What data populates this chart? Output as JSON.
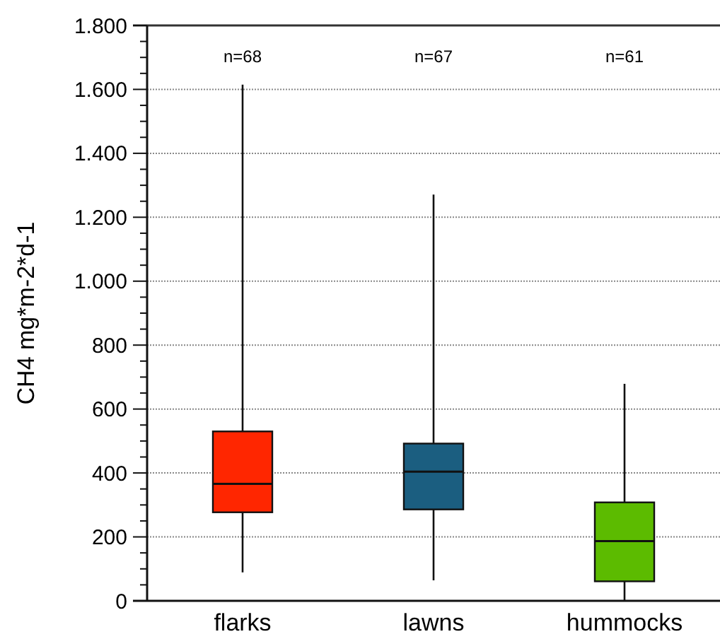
{
  "chart_data": {
    "type": "box",
    "ylabel": "CH4 mg*m-2*d-1",
    "categories": [
      "flarks",
      "lawns",
      "hummocks"
    ],
    "colors": [
      "#ff2600",
      "#1b5e80",
      "#5cbb00"
    ],
    "boxes": [
      {
        "low": 89,
        "q1": 277,
        "median": 366,
        "q3": 530,
        "high": 1615
      },
      {
        "low": 64,
        "q1": 286,
        "median": 404,
        "q3": 492,
        "high": 1271
      },
      {
        "low": 0,
        "q1": 61,
        "median": 187,
        "q3": 308,
        "high": 679
      }
    ],
    "ylim": [
      0,
      1800
    ],
    "yticks": [
      0,
      {
        "value": 50,
        "label": null
      },
      200,
      {
        "value": 100,
        "label": null
      },
      {
        "value": 150,
        "label": null
      },
      {
        "value": 250,
        "label": null
      },
      {
        "value": 300,
        "label": null
      },
      {
        "value": 350,
        "label": null
      },
      400,
      {
        "value": 450,
        "label": null
      },
      {
        "value": 500,
        "label": null
      },
      {
        "value": 550,
        "label": null
      },
      600,
      {
        "value": 650,
        "label": null
      },
      {
        "value": 700,
        "label": null
      },
      {
        "value": 750,
        "label": null
      },
      800,
      {
        "value": 850,
        "label": null
      },
      {
        "value": 900,
        "label": null
      },
      {
        "value": 950,
        "label": null
      },
      {
        "value": 1000,
        "label": "1.000"
      },
      {
        "value": 1050,
        "label": null
      },
      {
        "value": 1100,
        "label": null
      },
      {
        "value": 1150,
        "label": null
      },
      {
        "value": 1200,
        "label": "1.200"
      },
      {
        "value": 1250,
        "label": null
      },
      {
        "value": 1300,
        "label": null
      },
      {
        "value": 1350,
        "label": null
      },
      {
        "value": 1400,
        "label": "1.400"
      },
      {
        "value": 1450,
        "label": null
      },
      {
        "value": 1500,
        "label": null
      },
      {
        "value": 1550,
        "label": null
      },
      {
        "value": 1600,
        "label": "1.600"
      },
      {
        "value": 1650,
        "label": null
      },
      {
        "value": 1700,
        "label": null
      },
      {
        "value": 1750,
        "label": null
      },
      {
        "value": 1800,
        "label": "1.800"
      }
    ],
    "grid": "y",
    "annotations": [
      "n=68",
      "n=67",
      "n=61"
    ]
  }
}
